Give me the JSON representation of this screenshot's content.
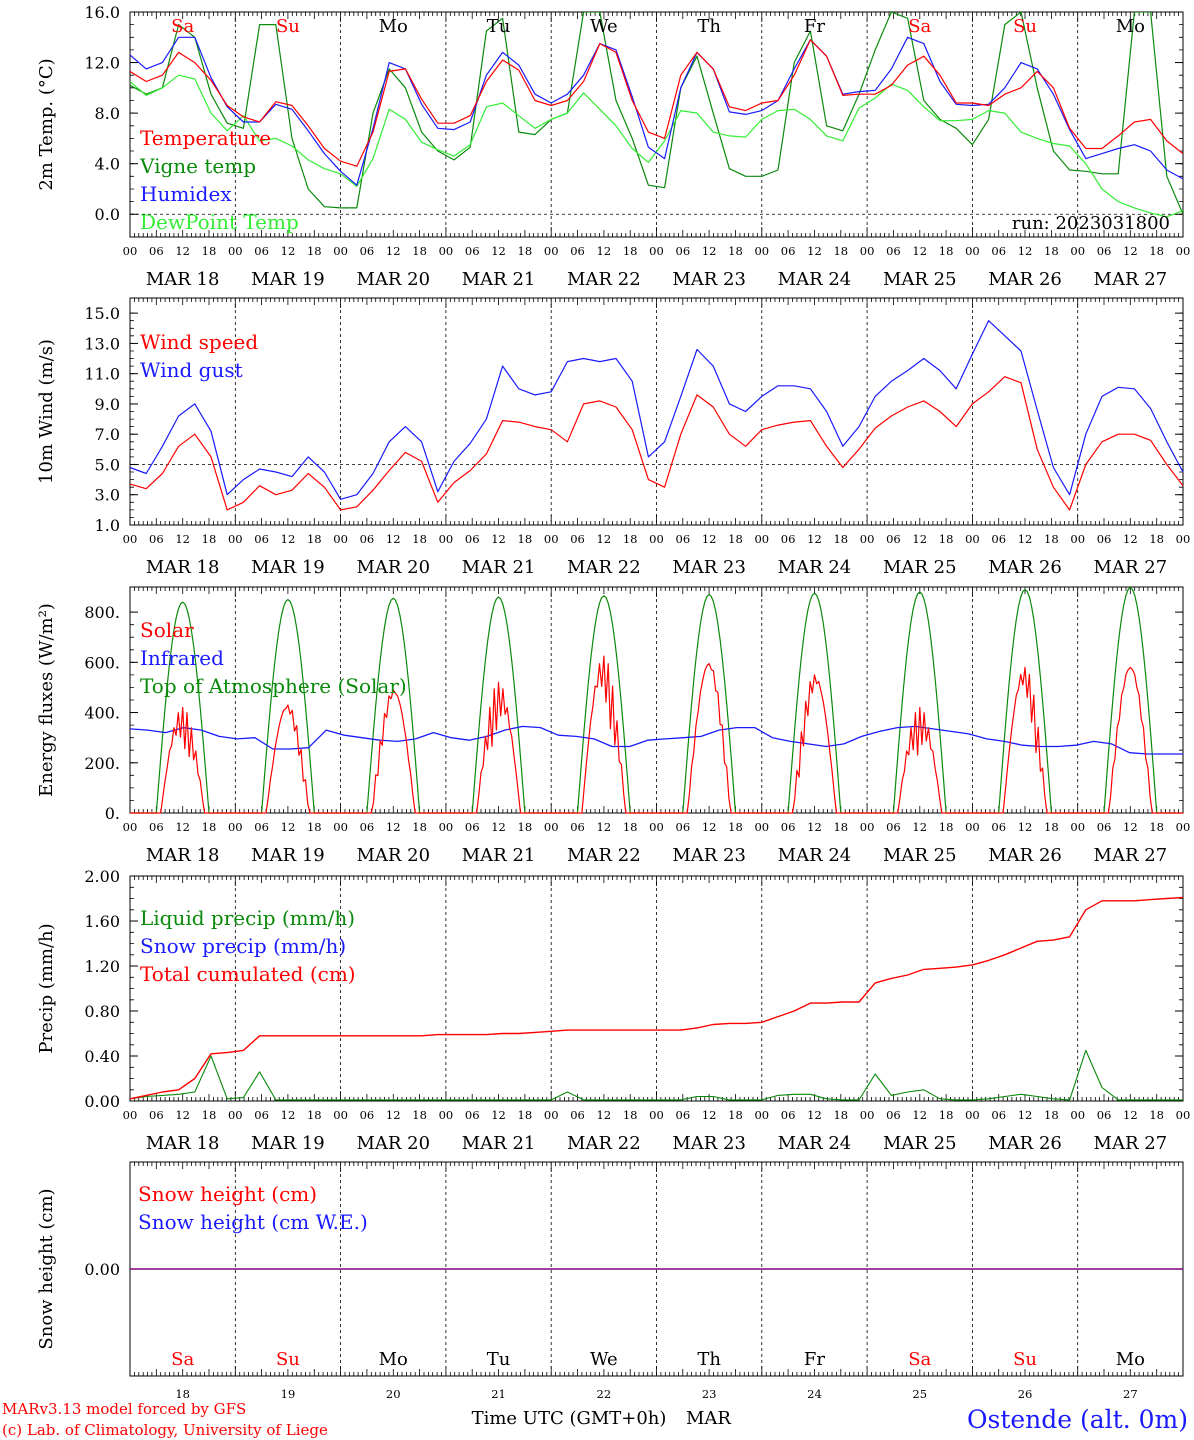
{
  "colors": {
    "red": "#ff0000",
    "green": "#0a8a0a",
    "blue": "#1a1aff",
    "lightgreen": "#33ee33",
    "purple": "#800080",
    "black": "#000000"
  },
  "chart_data": [
    {
      "type": "line",
      "ylabel": "2m Temp. (°C)",
      "ylim": [
        -1.8,
        16.0
      ],
      "yticks": [
        0,
        4,
        8,
        12,
        16
      ],
      "ytick_labels": [
        "0.0",
        "4.0",
        "8.0",
        "12.0",
        "16.0"
      ],
      "dashed_y": 0,
      "run_label": "run: 2023031800",
      "day_abbr": [
        "Sa",
        "Su",
        "Mo",
        "Tu",
        "We",
        "Th",
        "Fr",
        "Sa",
        "Su",
        "Mo"
      ],
      "series": [
        {
          "name": "Temperature",
          "color": "red",
          "values": [
            11.3,
            10.5,
            11,
            12.8,
            12,
            10.6,
            8.6,
            7.7,
            7.3,
            8.9,
            8.6,
            7,
            5.2,
            4.2,
            3.8,
            6.5,
            11.3,
            11.5,
            9.1,
            7.2,
            7.2,
            7.8,
            10.5,
            12.2,
            11.4,
            9,
            8.6,
            9,
            10.5,
            13.5,
            12.8,
            9,
            6.5,
            6,
            11,
            12.8,
            11.5,
            8.5,
            8.2,
            8.8,
            9,
            11,
            13.8,
            12.5,
            9.4,
            9.5,
            9.5,
            10.2,
            11.8,
            12.5,
            11,
            8.8,
            8.8,
            8.6,
            9.5,
            10,
            11.3,
            10,
            6.8,
            5.2,
            5.2,
            6.2,
            7.3,
            7.5,
            5.8,
            4.8
          ]
        },
        {
          "name": "Vigne temp",
          "color": "green",
          "values": [
            10.2,
            9.5,
            10,
            15,
            14,
            9.5,
            7.2,
            6.8,
            15,
            15,
            6,
            2,
            0.6,
            0.5,
            0.5,
            8,
            11.5,
            10,
            6.5,
            5,
            4.3,
            5.3,
            14.5,
            15.5,
            6.5,
            6.3,
            7.5,
            8,
            16,
            16,
            9,
            6,
            2.3,
            2.1,
            10,
            12.5,
            8,
            3.6,
            3,
            3,
            3.5,
            12,
            14.5,
            7,
            6.6,
            9.5,
            13,
            16,
            15.5,
            9,
            7.5,
            6.8,
            5.5,
            7.5,
            15,
            16,
            10,
            5,
            3.5,
            3.4,
            3.2,
            3.2,
            16,
            16,
            3,
            0
          ]
        },
        {
          "name": "Humidex",
          "color": "blue",
          "values": [
            12.6,
            11.5,
            12,
            14,
            14,
            10.8,
            8.5,
            7.3,
            7.3,
            8.7,
            8.3,
            6.6,
            4.8,
            3.4,
            2.3,
            6.8,
            12,
            11.5,
            8.7,
            6.8,
            6.7,
            7.3,
            11,
            12.8,
            11.8,
            9.5,
            8.8,
            9.5,
            11,
            13.5,
            13,
            9.3,
            5.3,
            4.4,
            10,
            12.8,
            11.5,
            8.1,
            7.9,
            8.2,
            9,
            11.5,
            13.8,
            12.5,
            9.5,
            9.7,
            9.8,
            11.5,
            14,
            13.5,
            10.5,
            8.7,
            8.6,
            8.7,
            10,
            12,
            11.5,
            9.5,
            6.7,
            4.4,
            4.8,
            5.2,
            5.5,
            5,
            3.5,
            2.8
          ]
        },
        {
          "name": "DewPoint Temp",
          "color": "lightgreen",
          "values": [
            10.5,
            9.4,
            10,
            11,
            10.7,
            8,
            6.6,
            7.8,
            5.8,
            6,
            5.4,
            4.3,
            3.6,
            3.2,
            2.2,
            4.4,
            8.3,
            7.5,
            5.7,
            5.1,
            4.6,
            5.5,
            8.5,
            8.8,
            7.8,
            6.8,
            7.5,
            8,
            9.6,
            8.3,
            7,
            5.2,
            4.1,
            5.8,
            8.2,
            8,
            6.5,
            6.2,
            6.1,
            7.5,
            8.2,
            8.3,
            7.5,
            6.2,
            5.8,
            8.4,
            9.2,
            10.3,
            9.8,
            8.5,
            7.4,
            7.4,
            7.5,
            8.2,
            8,
            6.5,
            6,
            5.6,
            5.4,
            4,
            2,
            1,
            0.5,
            0.1,
            -0.2,
            0.3
          ]
        }
      ]
    },
    {
      "type": "line",
      "ylabel": "10m Wind (m/s)",
      "ylim": [
        1.0,
        16.0
      ],
      "yticks": [
        1,
        3,
        5,
        7,
        9,
        11,
        13,
        15
      ],
      "ytick_labels": [
        "1.0",
        "3.0",
        "5.0",
        "7.0",
        "9.0",
        "11.0",
        "13.0",
        "15.0"
      ],
      "dashed_y": 5,
      "series": [
        {
          "name": "Wind speed",
          "color": "red",
          "values": [
            3.7,
            3.4,
            4.4,
            6.2,
            7,
            5.5,
            2,
            2.5,
            3.6,
            3,
            3.3,
            4.4,
            3.5,
            2,
            2.2,
            3.3,
            4.6,
            5.8,
            5.2,
            2.5,
            3.8,
            4.6,
            5.7,
            7.9,
            7.8,
            7.5,
            7.3,
            6.5,
            9,
            9.2,
            8.8,
            7.3,
            4,
            3.5,
            7,
            9.6,
            8.8,
            7,
            6.2,
            7.3,
            7.6,
            7.8,
            7.9,
            6.2,
            4.8,
            6,
            7.4,
            8.2,
            8.8,
            9.2,
            8.5,
            7.5,
            9,
            9.8,
            10.8,
            10.4,
            6,
            3.5,
            2,
            5,
            6.5,
            7,
            7,
            6.6,
            5,
            3.6
          ]
        },
        {
          "name": "Wind gust",
          "color": "blue",
          "values": [
            4.8,
            4.4,
            6.2,
            8.2,
            9,
            7.2,
            3,
            4,
            4.7,
            4.5,
            4.2,
            5.5,
            4.5,
            2.7,
            3,
            4.4,
            6.5,
            7.5,
            6.5,
            3.2,
            5.2,
            6.4,
            8,
            11.5,
            10,
            9.6,
            9.8,
            11.8,
            12,
            11.8,
            12,
            10.5,
            5.5,
            6.5,
            9.5,
            12.6,
            11.5,
            9,
            8.5,
            9.5,
            10.2,
            10.2,
            10,
            8.5,
            6.2,
            7.5,
            9.5,
            10.5,
            11.2,
            12,
            11.2,
            10,
            12.3,
            14.5,
            13.5,
            12.5,
            8.6,
            4.8,
            3,
            7,
            9.5,
            10.1,
            10,
            8.7,
            6.5,
            4.5
          ]
        }
      ]
    },
    {
      "type": "line",
      "ylabel": "Energy fluxes (W/m²)",
      "ylim": [
        0,
        900
      ],
      "yticks": [
        0,
        200,
        400,
        600,
        800
      ],
      "ytick_labels": [
        "0.",
        "200.",
        "400.",
        "600.",
        "800."
      ],
      "series": [
        {
          "name": "Solar",
          "color": "red",
          "peaks": [
            420,
            430,
            490,
            520,
            625,
            595,
            550,
            420,
            580,
            580
          ]
        },
        {
          "name": "Infrared",
          "color": "blue",
          "values": [
            335,
            330,
            320,
            340,
            330,
            305,
            295,
            300,
            255,
            255,
            260,
            330,
            310,
            300,
            290,
            285,
            295,
            320,
            300,
            290,
            305,
            330,
            345,
            340,
            310,
            305,
            295,
            265,
            265,
            290,
            295,
            300,
            305,
            330,
            340,
            340,
            300,
            285,
            275,
            265,
            275,
            305,
            325,
            340,
            345,
            335,
            325,
            315,
            295,
            285,
            270,
            265,
            265,
            270,
            285,
            275,
            240,
            235,
            235,
            235
          ]
        },
        {
          "name": "Top of Atmosphere (Solar)",
          "color": "green",
          "peaks": [
            840,
            850,
            855,
            860,
            865,
            870,
            875,
            880,
            890,
            898
          ]
        }
      ]
    },
    {
      "type": "line",
      "ylabel": "Precip (mm/h)",
      "ylim": [
        0,
        2.0
      ],
      "yticks": [
        0,
        0.4,
        0.8,
        1.2,
        1.6,
        2.0
      ],
      "ytick_labels": [
        "0.00",
        "0.40",
        "0.80",
        "1.20",
        "1.60",
        "2.00"
      ],
      "series": [
        {
          "name": "Liquid precip (mm/h)",
          "color": "green",
          "values": [
            0.02,
            0.04,
            0.05,
            0.06,
            0.08,
            0.4,
            0.02,
            0.03,
            0.26,
            0.01,
            0.01,
            0.01,
            0.01,
            0.01,
            0.01,
            0.01,
            0.01,
            0.01,
            0.01,
            0.01,
            0.01,
            0.01,
            0.01,
            0.01,
            0.01,
            0.01,
            0.01,
            0.08,
            0.01,
            0.01,
            0.01,
            0.01,
            0.01,
            0.01,
            0.01,
            0.04,
            0.04,
            0.01,
            0.01,
            0.01,
            0.05,
            0.06,
            0.06,
            0.02,
            0.01,
            0.01,
            0.24,
            0.05,
            0.08,
            0.1,
            0.02,
            0.01,
            0.01,
            0.02,
            0.04,
            0.06,
            0.04,
            0.02,
            0.01,
            0.45,
            0.12,
            0.01,
            0.01,
            0.01,
            0.01,
            0.01
          ]
        },
        {
          "name": "Snow precip (mm/h)",
          "color": "blue",
          "values": []
        },
        {
          "name": "Total cumulated (cm)",
          "color": "red",
          "values": [
            0.02,
            0.05,
            0.08,
            0.1,
            0.2,
            0.42,
            0.43,
            0.45,
            0.58,
            0.58,
            0.58,
            0.58,
            0.58,
            0.58,
            0.58,
            0.58,
            0.58,
            0.58,
            0.58,
            0.59,
            0.59,
            0.59,
            0.59,
            0.6,
            0.6,
            0.61,
            0.62,
            0.63,
            0.63,
            0.63,
            0.63,
            0.63,
            0.63,
            0.63,
            0.63,
            0.65,
            0.68,
            0.69,
            0.69,
            0.7,
            0.75,
            0.8,
            0.87,
            0.87,
            0.88,
            0.88,
            1.05,
            1.09,
            1.12,
            1.17,
            1.18,
            1.19,
            1.21,
            1.25,
            1.3,
            1.36,
            1.42,
            1.43,
            1.46,
            1.7,
            1.78,
            1.78,
            1.78,
            1.79,
            1.8,
            1.81
          ]
        }
      ]
    },
    {
      "type": "line",
      "ylabel": "Snow height (cm)",
      "ylim": [
        -1,
        1
      ],
      "yticks": [
        0
      ],
      "ytick_labels": [
        "0.00"
      ],
      "series": [
        {
          "name": "Snow height (cm)",
          "color": "red",
          "values": [
            0,
            0
          ]
        },
        {
          "name": "Snow height (cm W.E.)",
          "color": "blue",
          "values": [
            0,
            0
          ]
        }
      ]
    }
  ],
  "x_axis": {
    "hour_labels": [
      "00",
      "06",
      "12",
      "18"
    ],
    "final_hour": "00",
    "date_labels": [
      "MAR 18",
      "MAR 19",
      "MAR 20",
      "MAR 21",
      "MAR 22",
      "MAR 23",
      "MAR 24",
      "MAR 25",
      "MAR 26",
      "MAR 27"
    ],
    "bottom_day_abbr": [
      "Sa",
      "Su",
      "Mo",
      "Tu",
      "We",
      "Th",
      "Fr",
      "Sa",
      "Su",
      "Mo"
    ],
    "weekend": [
      true,
      true,
      false,
      false,
      false,
      false,
      false,
      true,
      true,
      false
    ],
    "bottom_day_numbers": [
      "18",
      "19",
      "20",
      "21",
      "22",
      "23",
      "24",
      "25",
      "26",
      "27"
    ],
    "xlabel": "Time UTC (GMT+0h)",
    "month": "MAR"
  },
  "footer": {
    "line1": "MARv3.13 model forced by GFS",
    "line2": "(c) Lab. of Climatology, University of Liege",
    "station": "Ostende (alt. 0m)"
  }
}
